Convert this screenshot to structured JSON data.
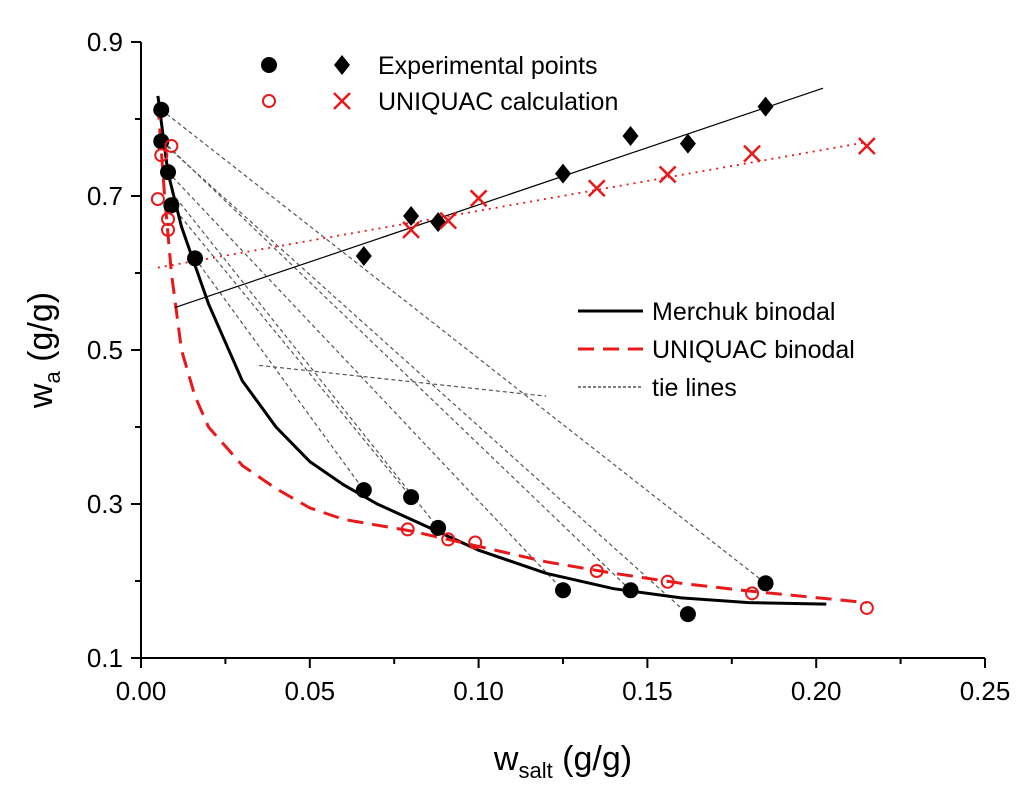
{
  "chart_data": {
    "type": "scatter",
    "xlabel": "w",
    "xlabel_sub": "salt",
    "xlabel_unit": " (g/g)",
    "ylabel": "w",
    "ylabel_sub": "a",
    "ylabel_unit": " (g/g)",
    "xlim": [
      0,
      0.25
    ],
    "ylim": [
      0.1,
      0.9
    ],
    "xticks": [
      "0.00",
      "0.05",
      "0.10",
      "0.15",
      "0.20",
      "0.25"
    ],
    "xtick_values": [
      0,
      0.05,
      0.1,
      0.15,
      0.2,
      0.25
    ],
    "yticks": [
      "0.1",
      "0.3",
      "0.5",
      "0.7",
      "0.9"
    ],
    "ytick_values": [
      0.1,
      0.3,
      0.5,
      0.7,
      0.9
    ],
    "grid": false,
    "colors": {
      "experimental": "#000000",
      "uniquac": "#e8191a",
      "tie": "#555555"
    },
    "legend_top": {
      "placement": "top-left",
      "entries": [
        "Experimental points",
        "UNIQUAC calculation"
      ]
    },
    "legend_bottom": {
      "placement": "center-right",
      "entries": [
        "Merchuk binodal",
        "UNIQUAC binodal",
        "tie lines"
      ]
    },
    "series": [
      {
        "name": "Experimental points",
        "marker": "filled-circle",
        "color": "#000000",
        "points": [
          [
            0.006,
            0.812
          ],
          [
            0.006,
            0.771
          ],
          [
            0.008,
            0.731
          ],
          [
            0.009,
            0.688
          ],
          [
            0.016,
            0.619
          ],
          [
            0.066,
            0.318
          ],
          [
            0.08,
            0.309
          ],
          [
            0.088,
            0.269
          ],
          [
            0.125,
            0.188
          ],
          [
            0.145,
            0.188
          ],
          [
            0.162,
            0.157
          ],
          [
            0.185,
            0.197
          ]
        ]
      },
      {
        "name": "Experimental points",
        "marker": "filled-diamond",
        "color": "#000000",
        "points": [
          [
            0.066,
            0.622
          ],
          [
            0.08,
            0.674
          ],
          [
            0.088,
            0.666
          ],
          [
            0.125,
            0.729
          ],
          [
            0.145,
            0.778
          ],
          [
            0.162,
            0.768
          ],
          [
            0.185,
            0.816
          ]
        ]
      },
      {
        "name": "UNIQUAC calculation",
        "marker": "open-circle",
        "color": "#e8191a",
        "points": [
          [
            0.005,
            0.696
          ],
          [
            0.006,
            0.753
          ],
          [
            0.009,
            0.765
          ],
          [
            0.008,
            0.67
          ],
          [
            0.008,
            0.656
          ],
          [
            0.079,
            0.267
          ],
          [
            0.091,
            0.254
          ],
          [
            0.099,
            0.25
          ],
          [
            0.135,
            0.213
          ],
          [
            0.156,
            0.199
          ],
          [
            0.181,
            0.184
          ],
          [
            0.215,
            0.165
          ]
        ]
      },
      {
        "name": "UNIQUAC calculation",
        "marker": "cross",
        "color": "#e8191a",
        "points": [
          [
            0.08,
            0.656
          ],
          [
            0.091,
            0.668
          ],
          [
            0.1,
            0.697
          ],
          [
            0.135,
            0.71
          ],
          [
            0.156,
            0.728
          ],
          [
            0.181,
            0.755
          ],
          [
            0.215,
            0.765
          ]
        ]
      },
      {
        "name": "Merchuk binodal",
        "line": "solid",
        "color": "#000000",
        "points": [
          [
            0.005,
            0.83
          ],
          [
            0.008,
            0.73
          ],
          [
            0.012,
            0.66
          ],
          [
            0.016,
            0.61
          ],
          [
            0.02,
            0.56
          ],
          [
            0.03,
            0.46
          ],
          [
            0.04,
            0.4
          ],
          [
            0.05,
            0.355
          ],
          [
            0.06,
            0.325
          ],
          [
            0.07,
            0.3
          ],
          [
            0.08,
            0.28
          ],
          [
            0.09,
            0.26
          ],
          [
            0.1,
            0.24
          ],
          [
            0.12,
            0.21
          ],
          [
            0.14,
            0.19
          ],
          [
            0.16,
            0.178
          ],
          [
            0.18,
            0.172
          ],
          [
            0.203,
            0.17
          ]
        ]
      },
      {
        "name": "UNIQUAC binodal",
        "line": "dashed",
        "color": "#e8191a",
        "points": [
          [
            0.005,
            0.82
          ],
          [
            0.007,
            0.7
          ],
          [
            0.009,
            0.6
          ],
          [
            0.012,
            0.5
          ],
          [
            0.016,
            0.44
          ],
          [
            0.02,
            0.4
          ],
          [
            0.03,
            0.35
          ],
          [
            0.04,
            0.32
          ],
          [
            0.05,
            0.295
          ],
          [
            0.06,
            0.28
          ],
          [
            0.08,
            0.265
          ],
          [
            0.1,
            0.245
          ],
          [
            0.12,
            0.225
          ],
          [
            0.14,
            0.21
          ],
          [
            0.16,
            0.197
          ],
          [
            0.18,
            0.187
          ],
          [
            0.215,
            0.172
          ]
        ]
      },
      {
        "line": "thin-solid",
        "color": "#000000",
        "points": [
          [
            0.01,
            0.555
          ],
          [
            0.202,
            0.84
          ]
        ]
      },
      {
        "line": "dotted",
        "color": "#e8191a",
        "points": [
          [
            0.005,
            0.607
          ],
          [
            0.215,
            0.77
          ]
        ]
      }
    ],
    "tie_lines": [
      [
        [
          0.006,
          0.812
        ],
        [
          0.185,
          0.197
        ]
      ],
      [
        [
          0.006,
          0.771
        ],
        [
          0.162,
          0.157
        ]
      ],
      [
        [
          0.008,
          0.765
        ],
        [
          0.145,
          0.188
        ]
      ],
      [
        [
          0.008,
          0.731
        ],
        [
          0.125,
          0.188
        ]
      ],
      [
        [
          0.009,
          0.705
        ],
        [
          0.088,
          0.269
        ]
      ],
      [
        [
          0.009,
          0.688
        ],
        [
          0.08,
          0.309
        ]
      ],
      [
        [
          0.016,
          0.619
        ],
        [
          0.066,
          0.318
        ]
      ],
      [
        [
          0.035,
          0.48
        ],
        [
          0.12,
          0.44
        ]
      ]
    ]
  }
}
